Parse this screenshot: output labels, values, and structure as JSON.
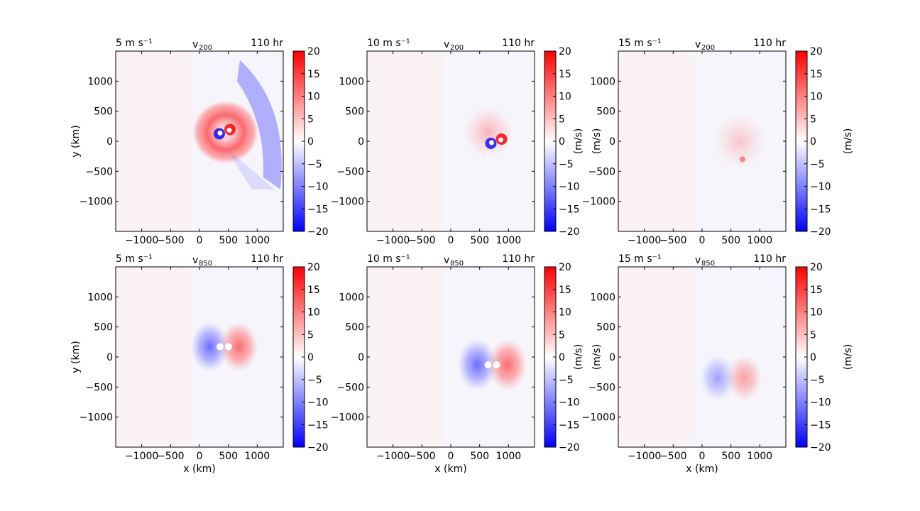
{
  "chart_data": [
    {
      "type": "heatmap",
      "row": 0,
      "col": 0,
      "title_left": "5 m s⁻¹",
      "title_center": "v",
      "title_center_sub": "200",
      "title_right": "110 hr",
      "xlabel": "",
      "ylabel": "y (km)",
      "cbar_label": "",
      "xlim": [
        -1450,
        1450
      ],
      "ylim": [
        -1500,
        1500
      ],
      "features": [
        {
          "kind": "ring",
          "cx": 450,
          "cy": 150,
          "r": 500,
          "value": 10
        },
        {
          "kind": "arc",
          "cx": 1150,
          "cy": 0,
          "value": -7
        },
        {
          "kind": "dipole",
          "cx": 430,
          "cy": 160,
          "value": 20
        }
      ]
    },
    {
      "type": "heatmap",
      "row": 0,
      "col": 1,
      "title_left": "10 m s⁻¹",
      "title_center": "v",
      "title_center_sub": "200",
      "title_right": "110 hr",
      "xlabel": "",
      "ylabel": "",
      "cbar_label": "(m/s)",
      "xlim": [
        -1450,
        1450
      ],
      "ylim": [
        -1500,
        1500
      ],
      "features": [
        {
          "kind": "blob",
          "cx": 650,
          "cy": 150,
          "r": 420,
          "value": 10
        },
        {
          "kind": "dipole",
          "cx": 780,
          "cy": 0,
          "value": 20
        }
      ]
    },
    {
      "type": "heatmap",
      "row": 0,
      "col": 2,
      "title_left": "15 m s⁻¹",
      "title_center": "v",
      "title_center_sub": "200",
      "title_right": "110 hr",
      "xlabel": "",
      "ylabel": "(m/s)",
      "cbar_label": "(m/s)",
      "xlim": [
        -1450,
        1450
      ],
      "ylim": [
        -1500,
        1500
      ],
      "features": [
        {
          "kind": "blob",
          "cx": 650,
          "cy": 0,
          "r": 450,
          "value": 3
        },
        {
          "kind": "spot",
          "cx": 700,
          "cy": -300,
          "value": 12
        }
      ]
    },
    {
      "type": "heatmap",
      "row": 1,
      "col": 0,
      "title_left": "5 m s⁻¹",
      "title_center": "v",
      "title_center_sub": "850",
      "title_right": "110 hr",
      "xlabel": "x (km)",
      "ylabel": "y (km)",
      "cbar_label": "",
      "xlim": [
        -1450,
        1450
      ],
      "ylim": [
        -1500,
        1500
      ],
      "features": [
        {
          "kind": "dipole",
          "cx": 430,
          "cy": 170,
          "r": 600,
          "value": 15
        }
      ]
    },
    {
      "type": "heatmap",
      "row": 1,
      "col": 1,
      "title_left": "10 m s⁻¹",
      "title_center": "v",
      "title_center_sub": "850",
      "title_right": "110 hr",
      "xlabel": "x (km)",
      "ylabel": "",
      "cbar_label": "(m/s)",
      "xlim": [
        -1450,
        1450
      ],
      "ylim": [
        -1500,
        1500
      ],
      "features": [
        {
          "kind": "dipole",
          "cx": 720,
          "cy": -130,
          "r": 620,
          "value": 15
        }
      ]
    },
    {
      "type": "heatmap",
      "row": 1,
      "col": 2,
      "title_left": "15 m s⁻¹",
      "title_center": "v",
      "title_center_sub": "850",
      "title_right": "110 hr",
      "xlabel": "x (km)",
      "ylabel": "(m/s)",
      "cbar_label": "(m/s)",
      "xlim": [
        -1450,
        1450
      ],
      "ylim": [
        -1500,
        1500
      ],
      "features": [
        {
          "kind": "dipole",
          "cx": 500,
          "cy": -350,
          "r": 550,
          "value": 6
        }
      ]
    }
  ],
  "x_ticks": [
    -1000,
    -500,
    0,
    500,
    1000
  ],
  "x_tick_labels": [
    "−1000",
    "−500",
    "0",
    "500",
    "1000"
  ],
  "y_ticks": [
    1000,
    500,
    0,
    -500,
    -1000
  ],
  "y_tick_labels": [
    "1000",
    "500",
    "0",
    "−500",
    "−1000"
  ],
  "colorbar": {
    "range": [
      -20,
      20
    ],
    "ticks": [
      20,
      15,
      10,
      5,
      0,
      -5,
      -10,
      -15,
      -20
    ],
    "tick_labels": [
      "20",
      "15",
      "10",
      "5",
      "0",
      "−5",
      "−10",
      "−15",
      "−20"
    ],
    "colormap": "bwr",
    "colors": {
      "low": "#0000ff",
      "mid": "#ffffff",
      "high": "#ff0000"
    }
  },
  "colors": {
    "positive": "#ff0000",
    "negative": "#0000ff",
    "background_pos": "#fdf1f1",
    "background_neg": "#f3f3fd"
  }
}
